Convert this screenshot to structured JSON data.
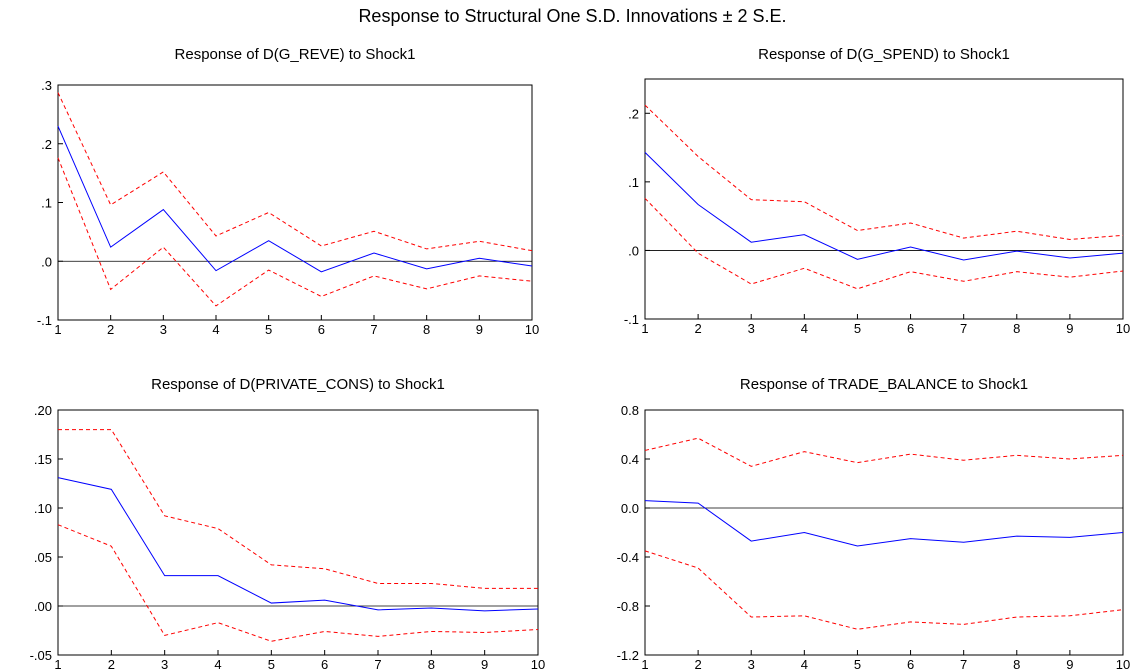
{
  "title": "Response to Structural One S.D. Innovations ± 2 S.E.",
  "colors": {
    "response": "#0000ff",
    "band": "#ff0000",
    "axis": "#000000",
    "zero": "#000000"
  },
  "chart_data": [
    {
      "type": "line",
      "title": "Response of D(G_REVE) to Shock1",
      "x": [
        1,
        2,
        3,
        4,
        5,
        6,
        7,
        8,
        9,
        10
      ],
      "ylim": [
        -0.1,
        0.3
      ],
      "yticks": [
        -0.1,
        0.0,
        0.1,
        0.2,
        0.3
      ],
      "ytick_labels": [
        "-.1",
        ".0",
        ".1",
        ".2",
        ".3"
      ],
      "zero_line": true,
      "series": [
        {
          "role": "response",
          "values": [
            0.23,
            0.024,
            0.088,
            -0.016,
            0.035,
            -0.018,
            0.014,
            -0.013,
            0.005,
            -0.008
          ]
        },
        {
          "role": "upper",
          "values": [
            0.287,
            0.096,
            0.152,
            0.043,
            0.083,
            0.026,
            0.051,
            0.021,
            0.034,
            0.018
          ]
        },
        {
          "role": "lower",
          "values": [
            0.176,
            -0.048,
            0.024,
            -0.076,
            -0.015,
            -0.06,
            -0.025,
            -0.047,
            -0.025,
            -0.034
          ]
        }
      ]
    },
    {
      "type": "line",
      "title": "Response of D(G_SPEND) to Shock1",
      "x": [
        1,
        2,
        3,
        4,
        5,
        6,
        7,
        8,
        9,
        10
      ],
      "ylim": [
        -0.1,
        0.25
      ],
      "yticks": [
        -0.1,
        0.0,
        0.1,
        0.2
      ],
      "ytick_labels": [
        "-.1",
        ".0",
        ".1",
        ".2"
      ],
      "zero_line": true,
      "series": [
        {
          "role": "response",
          "values": [
            0.143,
            0.067,
            0.012,
            0.023,
            -0.013,
            0.005,
            -0.014,
            -0.001,
            -0.011,
            -0.004
          ]
        },
        {
          "role": "upper",
          "values": [
            0.212,
            0.137,
            0.074,
            0.071,
            0.029,
            0.04,
            0.018,
            0.028,
            0.016,
            0.022
          ]
        },
        {
          "role": "lower",
          "values": [
            0.076,
            -0.004,
            -0.049,
            -0.026,
            -0.056,
            -0.031,
            -0.045,
            -0.031,
            -0.039,
            -0.03
          ]
        }
      ]
    },
    {
      "type": "line",
      "title": "Response of D(PRIVATE_CONS) to Shock1",
      "x": [
        1,
        2,
        3,
        4,
        5,
        6,
        7,
        8,
        9,
        10
      ],
      "ylim": [
        -0.05,
        0.2
      ],
      "yticks": [
        -0.05,
        0.0,
        0.05,
        0.1,
        0.15,
        0.2
      ],
      "ytick_labels": [
        "-.05",
        ".00",
        ".05",
        ".10",
        ".15",
        ".20"
      ],
      "zero_line": true,
      "series": [
        {
          "role": "response",
          "values": [
            0.131,
            0.119,
            0.031,
            0.031,
            0.003,
            0.006,
            -0.004,
            -0.002,
            -0.005,
            -0.003
          ]
        },
        {
          "role": "upper",
          "values": [
            0.18,
            0.18,
            0.092,
            0.079,
            0.042,
            0.038,
            0.023,
            0.023,
            0.018,
            0.018
          ]
        },
        {
          "role": "lower",
          "values": [
            0.083,
            0.061,
            -0.03,
            -0.017,
            -0.036,
            -0.026,
            -0.031,
            -0.026,
            -0.027,
            -0.024
          ]
        }
      ]
    },
    {
      "type": "line",
      "title": "Response of TRADE_BALANCE to Shock1",
      "x": [
        1,
        2,
        3,
        4,
        5,
        6,
        7,
        8,
        9,
        10
      ],
      "ylim": [
        -1.2,
        0.8
      ],
      "yticks": [
        -1.2,
        -0.8,
        -0.4,
        0.0,
        0.4,
        0.8
      ],
      "ytick_labels": [
        "-1.2",
        "-0.8",
        "-0.4",
        "0.0",
        "0.4",
        "0.8"
      ],
      "zero_line": true,
      "series": [
        {
          "role": "response",
          "values": [
            0.06,
            0.04,
            -0.27,
            -0.2,
            -0.31,
            -0.25,
            -0.28,
            -0.23,
            -0.24,
            -0.2
          ]
        },
        {
          "role": "upper",
          "values": [
            0.47,
            0.57,
            0.34,
            0.46,
            0.37,
            0.44,
            0.39,
            0.43,
            0.4,
            0.43
          ]
        },
        {
          "role": "lower",
          "values": [
            -0.35,
            -0.49,
            -0.89,
            -0.88,
            -0.99,
            -0.93,
            -0.95,
            -0.89,
            -0.88,
            -0.83
          ]
        }
      ]
    }
  ]
}
